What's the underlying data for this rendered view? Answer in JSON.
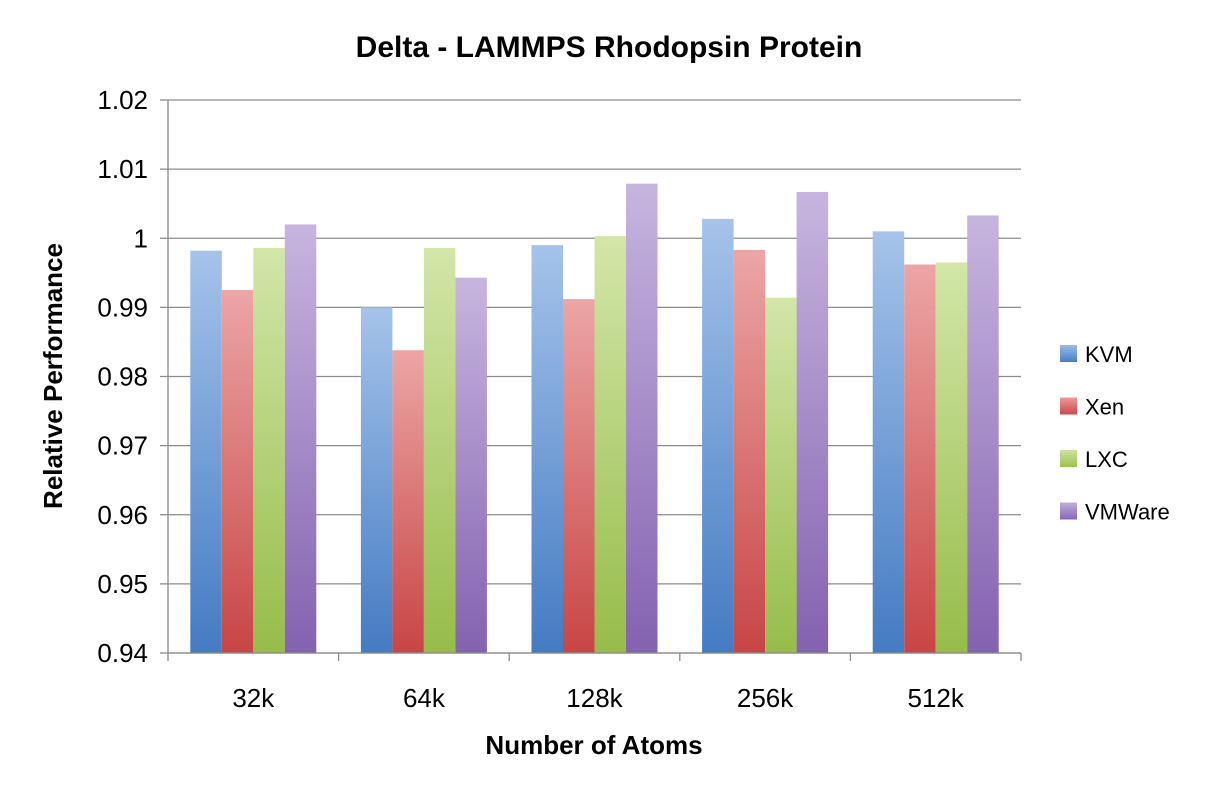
{
  "chart_data": {
    "type": "bar",
    "title": "Delta - LAMMPS Rhodopsin Protein",
    "xlabel": "Number of Atoms",
    "ylabel": "Relative Performance",
    "categories": [
      "32k",
      "64k",
      "128k",
      "256k",
      "512k"
    ],
    "series": [
      {
        "name": "KVM",
        "values": [
          0.9982,
          0.99,
          0.999,
          1.0028,
          1.001
        ],
        "color": "#4a86d4"
      },
      {
        "name": "Xen",
        "values": [
          0.9925,
          0.9838,
          0.9912,
          0.9983,
          0.9962
        ],
        "color": "#d94b4b"
      },
      {
        "name": "LXC",
        "values": [
          0.9986,
          0.9986,
          1.0003,
          0.9914,
          0.9965
        ],
        "color": "#a4cc50"
      },
      {
        "name": "VMWare",
        "values": [
          1.002,
          0.9943,
          1.0079,
          1.0067,
          1.0033
        ],
        "color": "#8e6bbf"
      }
    ],
    "ylim": [
      0.94,
      1.02
    ],
    "yticks": [
      0.94,
      0.95,
      0.96,
      0.97,
      0.98,
      0.99,
      1,
      1.01,
      1.02
    ],
    "ytick_labels": [
      "0.94",
      "0.95",
      "0.96",
      "0.97",
      "0.98",
      "0.99",
      "1",
      "1.01",
      "1.02"
    ],
    "grid": true,
    "legend_position": "right"
  }
}
